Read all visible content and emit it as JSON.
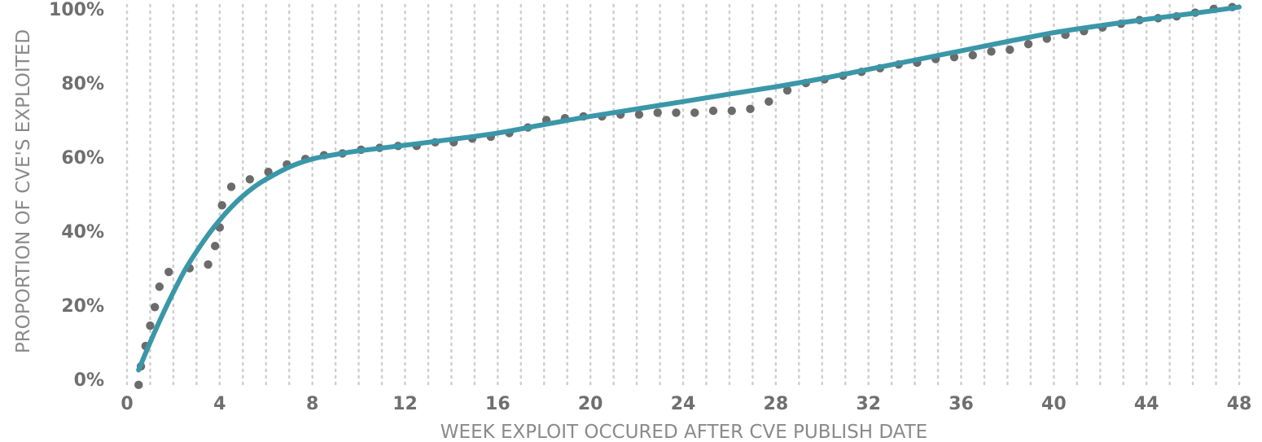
{
  "chart_data": {
    "type": "scatter",
    "title": "",
    "xlabel": "WEEK EXPLOIT OCCURED AFTER CVE PUBLISH DATE",
    "ylabel": "PROPORTION OF CVE'S EXPLOITED",
    "xlim": [
      0,
      48
    ],
    "ylim": [
      0,
      100
    ],
    "x_ticks": [
      0,
      4,
      8,
      12,
      16,
      20,
      24,
      28,
      32,
      36,
      40,
      44,
      48
    ],
    "x_tick_labels": [
      "0",
      "4",
      "8",
      "12",
      "16",
      "20",
      "24",
      "28",
      "32",
      "36",
      "40",
      "44",
      "48"
    ],
    "y_ticks": [
      0,
      20,
      40,
      60,
      80,
      100
    ],
    "y_tick_labels": [
      "0%",
      "20%",
      "40%",
      "60%",
      "80%",
      "100%"
    ],
    "grid": "vertical dotted lines every week",
    "colors": {
      "points": "#6b6b6b",
      "fit": "#3a97a8",
      "grid": "#cfcfcf",
      "ticks": "#6f6f6f",
      "axis_title": "#8a8a8a"
    },
    "series": [
      {
        "kind": "points",
        "x": [
          0.5,
          0.6,
          0.8,
          1,
          1.2,
          1.4,
          1.8,
          2.7,
          3.5,
          3.8,
          4,
          4.1,
          4.5,
          5.3,
          6.1,
          6.9,
          7.7,
          8.5,
          9.3,
          10.1,
          10.9,
          11.7,
          12.5,
          13.3,
          14.1,
          14.9,
          15.7,
          16.5,
          17.3,
          18.1,
          18.9,
          19.7,
          20.5,
          21.3,
          22.1,
          22.9,
          23.7,
          24.5,
          25.3,
          26.1,
          26.9,
          27.7,
          28.5,
          29.3,
          30.1,
          30.9,
          31.7,
          32.5,
          33.3,
          34.1,
          34.9,
          35.7,
          36.5,
          37.3,
          38.1,
          38.9,
          39.7,
          40.5,
          41.3,
          42.1,
          42.9,
          43.7,
          44.5,
          45.3,
          46.1,
          46.9,
          47.7
        ],
        "y": [
          -1.5,
          3.5,
          9,
          14.5,
          19.5,
          25,
          29,
          30,
          31,
          36,
          41,
          47,
          52,
          54,
          56,
          58,
          59.5,
          60.5,
          61,
          62,
          62.5,
          63,
          63,
          64,
          64,
          65,
          65.5,
          66.5,
          68,
          70,
          70.5,
          71,
          71,
          71.5,
          71.5,
          72,
          72,
          72,
          72.5,
          72.5,
          73,
          75,
          78,
          80,
          81,
          82,
          83,
          84,
          85,
          85.5,
          86.5,
          87,
          87.5,
          88.5,
          89,
          90.5,
          92,
          93,
          94,
          95,
          96,
          97,
          97.5,
          98,
          99,
          100,
          100.5
        ]
      },
      {
        "kind": "fit-line",
        "x": [
          0.5,
          1,
          1.5,
          2,
          2.5,
          3,
          3.5,
          4,
          4.5,
          5,
          5.5,
          6,
          7,
          8,
          9,
          10,
          12,
          14,
          16,
          18,
          20,
          22,
          24,
          26,
          28,
          30,
          32,
          34,
          36,
          38,
          40,
          42,
          44,
          46,
          48
        ],
        "y": [
          2.5,
          10,
          17,
          23.5,
          29.5,
          34.5,
          39,
          43,
          46.5,
          49.5,
          52,
          54,
          57.3,
          59.5,
          60.7,
          61.7,
          63.2,
          64.8,
          66.5,
          68.8,
          71,
          73,
          75,
          77,
          79,
          81.2,
          83.7,
          86.2,
          88.7,
          91.2,
          93.6,
          95.5,
          97.2,
          98.8,
          100.5
        ]
      }
    ]
  }
}
